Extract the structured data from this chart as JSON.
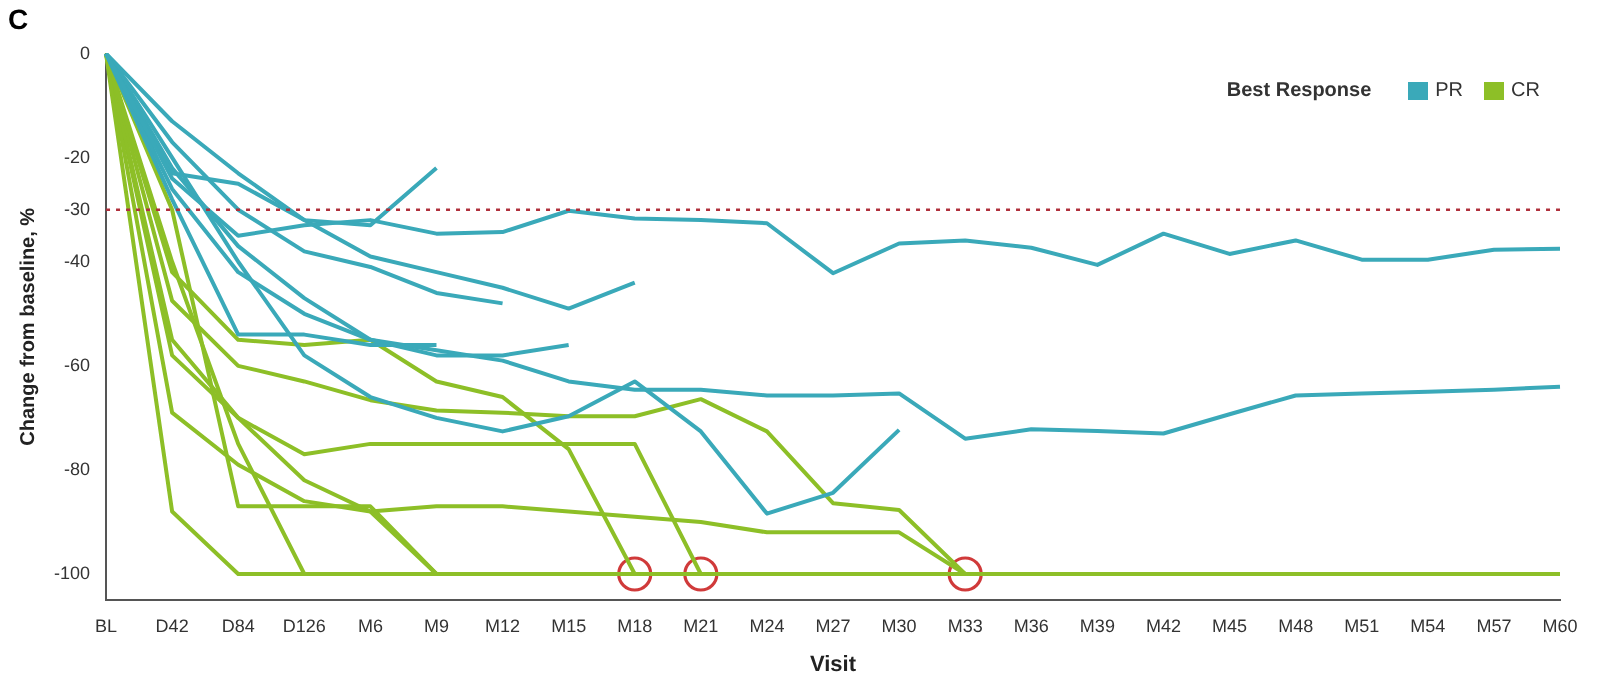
{
  "chart_data": {
    "type": "line",
    "title": "C",
    "xlabel": "Visit",
    "ylabel": "Change from baseline, %",
    "legend_title": "Best Response",
    "legend": "top right",
    "grid": false,
    "marker": "none",
    "line_style": "solid",
    "categories": [
      "BL",
      "D42",
      "D84",
      "D126",
      "M6",
      "M9",
      "M12",
      "M15",
      "M18",
      "M21",
      "M24",
      "M27",
      "M30",
      "M33",
      "M36",
      "M39",
      "M42",
      "M45",
      "M48",
      "M51",
      "M54",
      "M57",
      "M60"
    ],
    "ylim": [
      -105,
      0
    ],
    "yticks": [
      0,
      -20,
      -30,
      -40,
      -60,
      -80,
      -100
    ],
    "ref_lines": [
      {
        "axis": "y",
        "value": -30,
        "color": "#b0303c",
        "line_style": "dotted"
      }
    ],
    "series": [
      {
        "name": "PR",
        "color": "#3aa9b9",
        "values": [
          0,
          -24,
          -35,
          -33,
          -32,
          -34.6,
          -34.3,
          -30.2,
          -31.7,
          -32,
          -32.6,
          -42.2,
          -36.5,
          -35.9,
          -37.3,
          -40.6,
          -34.6,
          -38.5,
          -35.9,
          -39.6,
          -39.6,
          -37.7,
          -37.5
        ]
      },
      {
        "color": "#3aa9b9",
        "values": [
          0,
          -23,
          -25,
          -32,
          -33,
          -22,
          null,
          null,
          null,
          null,
          null,
          null,
          null,
          null,
          null,
          null,
          null,
          null,
          null,
          null,
          null,
          null,
          null
        ]
      },
      {
        "color": "#3aa9b9",
        "values": [
          0,
          -13,
          -23,
          -32,
          -39,
          -42,
          -45,
          -49,
          -44,
          null,
          null,
          null,
          null,
          null,
          null,
          null,
          null,
          null,
          null,
          null,
          null,
          null,
          null
        ]
      },
      {
        "color": "#3aa9b9",
        "values": [
          0,
          -22,
          -37,
          -47,
          -55,
          -58,
          -58,
          -56,
          null,
          null,
          null,
          null,
          null,
          null,
          null,
          null,
          null,
          null,
          null,
          null,
          null,
          null,
          null
        ]
      },
      {
        "color": "#3aa9b9",
        "values": [
          0,
          -26,
          -42,
          -50,
          -55,
          -57,
          -59,
          -63,
          -64.6,
          -64.6,
          -65.7,
          -65.7,
          -65.3,
          -74,
          -72.2,
          -72.5,
          -73,
          -69.3,
          -65.7,
          -65.3,
          -65,
          -64.6,
          -64
        ]
      },
      {
        "color": "#3aa9b9",
        "values": [
          0,
          -20,
          -40,
          -58,
          -66,
          -70,
          -72.6,
          -69.7,
          -63,
          -72.6,
          -88.4,
          -84.4,
          -72.3,
          null,
          null,
          null,
          null,
          null,
          null,
          null,
          null,
          null,
          null
        ]
      },
      {
        "color": "#3aa9b9",
        "values": [
          0,
          -28,
          -54,
          -54,
          -56,
          -56,
          null,
          null,
          null,
          null,
          null,
          null,
          null,
          null,
          null,
          null,
          null,
          null,
          null,
          null,
          null,
          null,
          null
        ]
      },
      {
        "color": "#3aa9b9",
        "values": [
          0,
          -17,
          -30,
          -38,
          -41,
          -46,
          -48,
          null,
          null,
          null,
          null,
          null,
          null,
          null,
          null,
          null,
          null,
          null,
          null,
          null,
          null,
          null,
          null
        ]
      },
      {
        "name": "CR",
        "color": "#8dbf27",
        "values": [
          0,
          -88,
          -100,
          -100,
          -100,
          -100,
          -100,
          -100,
          -100,
          -100,
          -100,
          -100,
          -100,
          -100,
          -100,
          -100,
          -100,
          -100,
          -100,
          -100,
          -100,
          -100,
          -100
        ]
      },
      {
        "color": "#8dbf27",
        "values": [
          0,
          -42,
          -55,
          -56,
          -55,
          -63,
          -66,
          -76,
          -100,
          null,
          null,
          null,
          null,
          null,
          null,
          null,
          null,
          null,
          null,
          null,
          null,
          null,
          null
        ]
      },
      {
        "color": "#8dbf27",
        "values": [
          0,
          -47.5,
          -60,
          -63,
          -66.6,
          -68.6,
          -69,
          -69.7,
          -69.7,
          -66.4,
          -72.6,
          -86.4,
          -87.7,
          -100,
          null,
          null,
          null,
          null,
          null,
          null,
          null,
          null,
          null
        ]
      },
      {
        "color": "#8dbf27",
        "values": [
          0,
          -55,
          -70,
          -77,
          -75,
          -75,
          -75,
          -75,
          -75,
          -100,
          null,
          null,
          null,
          null,
          null,
          null,
          null,
          null,
          null,
          null,
          null,
          null,
          null
        ]
      },
      {
        "color": "#8dbf27",
        "values": [
          0,
          -69,
          -79,
          -86,
          -88,
          -100,
          null,
          null,
          null,
          null,
          null,
          null,
          null,
          null,
          null,
          null,
          null,
          null,
          null,
          null,
          null,
          null,
          null
        ]
      },
      {
        "color": "#8dbf27",
        "values": [
          0,
          -30,
          -87,
          -87,
          -87,
          -100,
          -100,
          null,
          null,
          null,
          null,
          null,
          null,
          null,
          null,
          null,
          null,
          null,
          null,
          null,
          null,
          null,
          null
        ]
      },
      {
        "color": "#8dbf27",
        "values": [
          0,
          -58,
          -70,
          -82,
          -88,
          -87,
          -87,
          -88,
          -89,
          -90,
          -92,
          -92,
          -92,
          -100,
          -100,
          null,
          null,
          null,
          null,
          null,
          null,
          null,
          null
        ]
      },
      {
        "color": "#8dbf27",
        "values": [
          0,
          -40,
          -75,
          -100,
          null,
          null,
          null,
          null,
          null,
          null,
          null,
          null,
          null,
          null,
          null,
          null,
          null,
          null,
          null,
          null,
          null,
          null,
          null
        ]
      },
      {
        "type": "scatter",
        "marker": "circle",
        "color": "#d03a3a",
        "x": [
          "M18",
          "M21",
          "M33"
        ],
        "values": [
          -100,
          -100,
          -100
        ]
      }
    ]
  }
}
